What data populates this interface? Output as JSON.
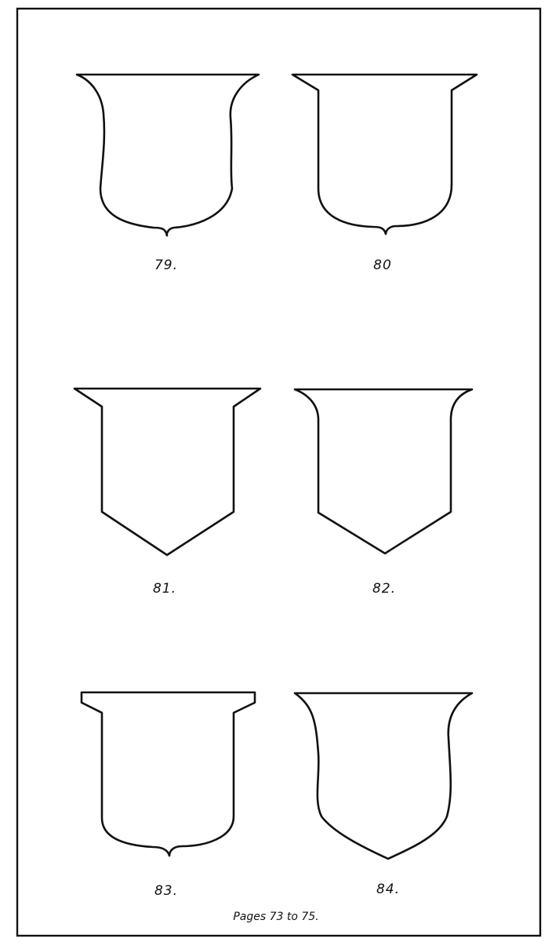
{
  "figures": [
    {
      "number": "79.",
      "shape": "concave-sides-ogee-point"
    },
    {
      "number": "80",
      "shape": "stepped-sides-ogee-point"
    },
    {
      "number": "81.",
      "shape": "stepped-sides-pointed-base"
    },
    {
      "number": "82.",
      "shape": "curved-sides-pointed-base"
    },
    {
      "number": "83.",
      "shape": "stepped-sides-ogee-point"
    },
    {
      "number": "84.",
      "shape": "concave-sides-pointed-curved-base"
    }
  ],
  "caption": "Pages 73 to 75."
}
